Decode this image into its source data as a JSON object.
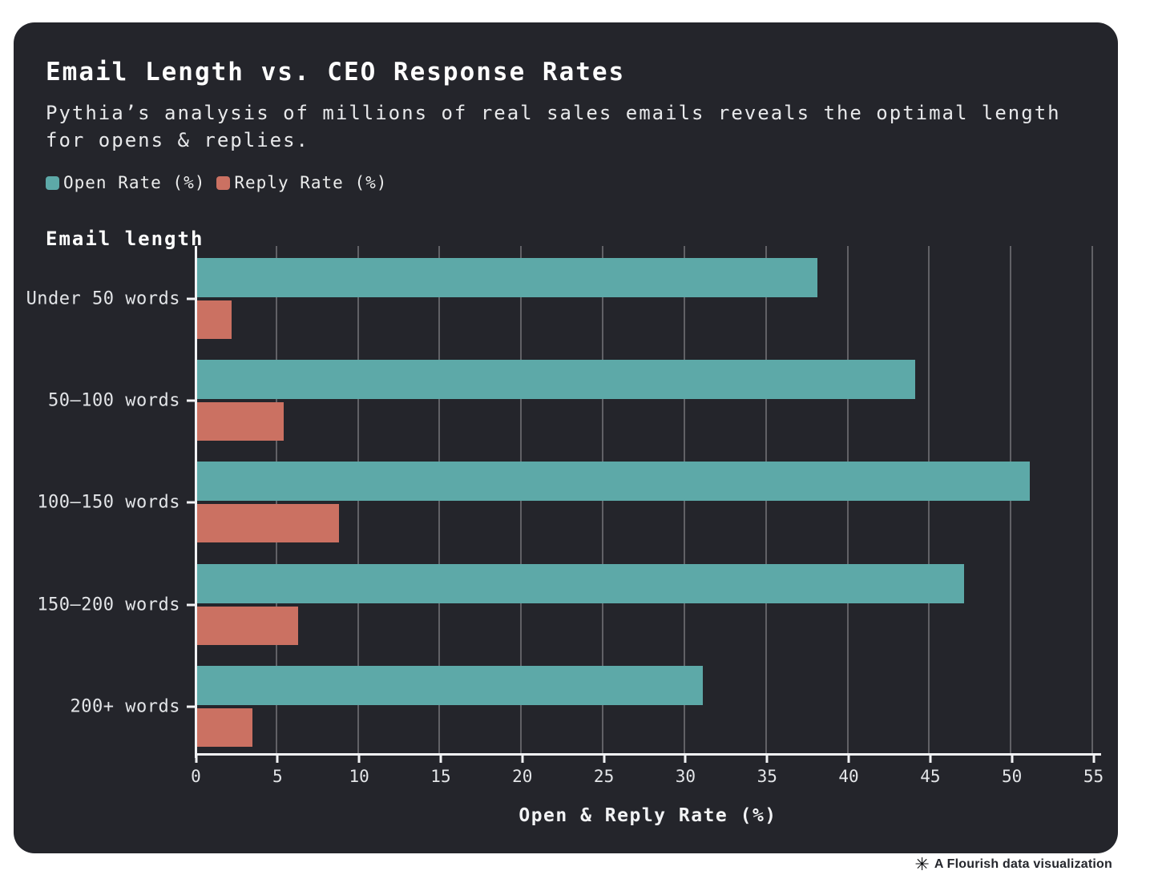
{
  "header": {
    "title": "Email Length vs. CEO Response Rates",
    "subtitle": "Pythia’s analysis of millions of real sales emails reveals the optimal length for opens & replies."
  },
  "legend": [
    {
      "label": "Open Rate (%)",
      "color": "#5da9a8"
    },
    {
      "label": "Reply Rate (%)",
      "color": "#cb7162"
    }
  ],
  "chart_data": {
    "type": "bar",
    "orientation": "horizontal",
    "title": "Email Length vs. CEO Response Rates",
    "categories": [
      "Under 50 words",
      "50–100 words",
      "100–150 words",
      "150–200 words",
      "200+ words"
    ],
    "series": [
      {
        "name": "Open Rate (%)",
        "color": "#5da9a8",
        "values": [
          38,
          44,
          51,
          47,
          31
        ]
      },
      {
        "name": "Reply Rate (%)",
        "color": "#cb7162",
        "values": [
          2.1,
          5.3,
          8.7,
          6.2,
          3.4
        ]
      }
    ],
    "xlabel": "Open & Reply Rate (%)",
    "ylabel": "Email length",
    "xlim": [
      0,
      55
    ],
    "xticks": [
      0,
      5,
      10,
      15,
      20,
      25,
      30,
      35,
      40,
      45,
      50,
      55
    ],
    "grid": true,
    "legend_position": "top"
  },
  "colors": {
    "card_background": "#24252b",
    "page_background": "#ffffff",
    "axis": "#f2f3f5",
    "text_primary": "#ffffff",
    "text_secondary": "#e8e9eb"
  },
  "footer": {
    "icon": "✳",
    "attribution": "A Flourish data visualization"
  }
}
